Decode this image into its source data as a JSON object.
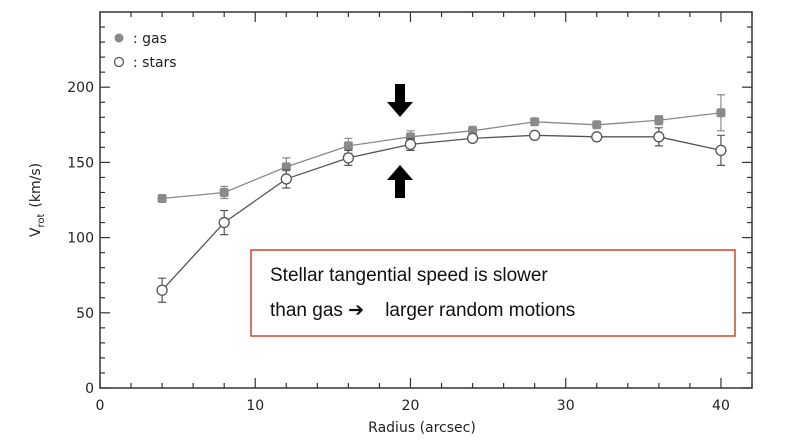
{
  "chart_data": {
    "type": "scatter",
    "x_label": "Radius (arcsec)",
    "y_label": {
      "main": "V",
      "sub": "rot",
      "unit": "(km/s)"
    },
    "x": [
      4,
      8,
      12,
      16,
      20,
      24,
      28,
      32,
      36,
      40
    ],
    "series": [
      {
        "name": ": gas",
        "color": "#8a8a8a",
        "marker": "filled",
        "values": [
          126,
          130,
          147,
          161,
          167,
          171,
          177,
          175,
          178,
          183
        ],
        "errors": [
          2,
          4,
          6,
          5,
          4,
          3,
          2,
          2,
          3,
          12
        ]
      },
      {
        "name": ": stars",
        "color": "#555555",
        "marker": "open",
        "values": [
          65,
          110,
          139,
          153,
          162,
          166,
          168,
          167,
          167,
          158
        ],
        "errors": [
          8,
          8,
          6,
          5,
          4,
          2,
          2,
          2,
          6,
          10
        ]
      }
    ],
    "xlim": [
      0,
      42
    ],
    "ylim": [
      0,
      250
    ],
    "xticks": [
      0,
      10,
      20,
      30,
      40
    ],
    "yticks": [
      0,
      50,
      100,
      150,
      200
    ],
    "xminorticks": [
      2,
      4,
      6,
      8,
      12,
      14,
      16,
      18,
      22,
      24,
      26,
      28,
      32,
      34,
      36,
      38,
      42
    ],
    "yminorticks": [
      10,
      20,
      30,
      40,
      60,
      70,
      80,
      90,
      110,
      120,
      130,
      140,
      160,
      170,
      180,
      190,
      210,
      220,
      230,
      240
    ],
    "legend": "upper left",
    "annotations": [
      "Stellar tangential speed is slower",
      "than gas ➔    larger random motions"
    ]
  }
}
